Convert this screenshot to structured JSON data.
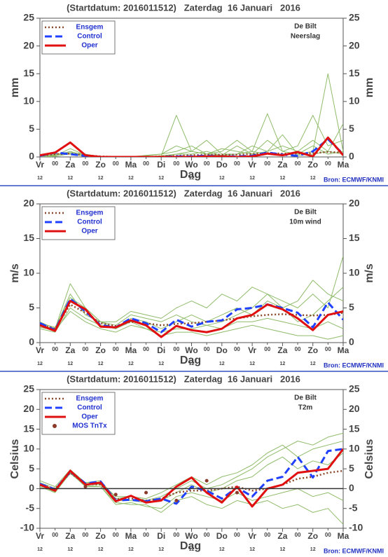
{
  "chart_data": [
    {
      "type": "line",
      "title": "(Startdatum: 2016011512)   Zaterdag  16 Januari   2016",
      "location": "De Bilt",
      "variable": "Neerslag",
      "ylabel": "mm",
      "y2label": "mm",
      "xlabel": "Dag",
      "source": "Bron: ECMWF/KNMI",
      "legend": "upper left",
      "x": [
        0,
        12,
        24,
        36,
        48,
        60,
        72,
        84,
        96,
        108,
        120,
        132,
        144,
        156,
        168,
        180,
        192,
        204,
        216,
        228,
        240
      ],
      "xlim": [
        0,
        240
      ],
      "xticks": [
        {
          "value": 0,
          "label": "Vr"
        },
        {
          "value": 12,
          "label": "00"
        },
        {
          "value": 24,
          "label": "Za"
        },
        {
          "value": 36,
          "label": "00"
        },
        {
          "value": 48,
          "label": "Zo"
        },
        {
          "value": 60,
          "label": "00"
        },
        {
          "value": 72,
          "label": "Ma"
        },
        {
          "value": 84,
          "label": "00"
        },
        {
          "value": 96,
          "label": "Di"
        },
        {
          "value": 108,
          "label": "00"
        },
        {
          "value": 120,
          "label": "Wo"
        },
        {
          "value": 132,
          "label": "00"
        },
        {
          "value": 144,
          "label": "Do"
        },
        {
          "value": 156,
          "label": "00"
        },
        {
          "value": 168,
          "label": "Vr"
        },
        {
          "value": 180,
          "label": "00"
        },
        {
          "value": 192,
          "label": "Za"
        },
        {
          "value": 204,
          "label": "00"
        },
        {
          "value": 216,
          "label": "Zo"
        },
        {
          "value": 228,
          "label": "00"
        },
        {
          "value": 240,
          "label": "Ma"
        }
      ],
      "xsubticks": [
        {
          "value": 0,
          "label": "12"
        },
        {
          "value": 24,
          "label": "12"
        },
        {
          "value": 48,
          "label": "12"
        },
        {
          "value": 72,
          "label": "12"
        },
        {
          "value": 96,
          "label": "12"
        },
        {
          "value": 120,
          "label": "12"
        },
        {
          "value": 144,
          "label": "12"
        },
        {
          "value": 168,
          "label": "12"
        },
        {
          "value": 192,
          "label": "12"
        },
        {
          "value": 216,
          "label": "12"
        }
      ],
      "ylim": [
        0,
        25
      ],
      "yticks": [
        0,
        5,
        10,
        15,
        20,
        25
      ],
      "y2lim": [
        0,
        25
      ],
      "y2ticks": [
        0,
        5,
        10,
        15,
        20,
        25
      ],
      "members": {
        "color": "#8fbc6a",
        "values": [
          [
            0,
            0.3,
            1,
            0.2,
            0,
            0,
            0,
            0,
            0.2,
            7.5,
            1,
            0.5,
            0.3,
            0.5,
            1,
            0.5,
            0.5,
            0.3,
            0.5,
            1,
            0.5
          ],
          [
            0,
            0.5,
            0.8,
            0.5,
            0,
            0,
            0,
            0.3,
            0.5,
            1,
            2,
            0.5,
            1,
            3,
            1,
            7.8,
            1,
            0.5,
            2,
            0.5,
            1
          ],
          [
            0,
            0.2,
            1.5,
            0.3,
            0,
            0,
            0,
            0,
            0,
            0.5,
            1,
            3,
            0.5,
            0.5,
            2,
            1,
            4,
            0.5,
            1,
            15,
            1
          ],
          [
            0,
            0.4,
            0.5,
            0.2,
            0,
            0,
            0.1,
            0.2,
            0.5,
            2,
            1,
            0.5,
            1.5,
            1,
            0.5,
            3,
            1,
            2,
            7.5,
            2,
            3
          ],
          [
            0,
            0.1,
            0.6,
            0.1,
            0,
            0,
            0,
            0,
            0.2,
            0.5,
            0.5,
            1,
            0.3,
            2,
            0.5,
            1,
            2,
            1,
            3,
            1,
            6
          ]
        ]
      },
      "series": [
        {
          "name": "Ensgem",
          "color": "#8b4a2b",
          "style": "dotted",
          "values": [
            0.2,
            0.5,
            0.6,
            0.3,
            0.1,
            0,
            0,
            0,
            0.1,
            0.2,
            0.3,
            0.4,
            0.4,
            0.4,
            0.5,
            0.7,
            0.6,
            0.6,
            0.7,
            0.9,
            0.8
          ]
        },
        {
          "name": "Control",
          "color": "#2040ff",
          "style": "dashed",
          "values": [
            0.2,
            0.8,
            0.5,
            0.2,
            0,
            0,
            0,
            0,
            0,
            0.1,
            0.1,
            0.2,
            0.1,
            0.1,
            0.2,
            0.8,
            0.4,
            0.2,
            1.0,
            3.2,
            0.5
          ]
        },
        {
          "name": "Oper",
          "color": "#e01010",
          "style": "solid",
          "values": [
            0.3,
            0.8,
            2.6,
            0.3,
            0,
            0,
            0,
            0,
            0,
            0,
            0,
            0.1,
            0.1,
            0,
            0.1,
            0.6,
            0.3,
            0.9,
            0.1,
            3.5,
            0.3
          ]
        }
      ]
    },
    {
      "type": "line",
      "title": "(Startdatum: 2016011512)   Zaterdag  16 Januari   2016",
      "location": "De Bilt",
      "variable": "10m wind",
      "ylabel": "m/s",
      "y2label": "m/s",
      "xlabel": "Dag",
      "source": "Bron: ECMWF/KNMI",
      "legend": "upper left",
      "x": [
        0,
        12,
        24,
        36,
        48,
        60,
        72,
        84,
        96,
        108,
        120,
        132,
        144,
        156,
        168,
        180,
        192,
        204,
        216,
        228,
        240
      ],
      "xlim": [
        0,
        240
      ],
      "xticks": [
        {
          "value": 0,
          "label": "Vr"
        },
        {
          "value": 12,
          "label": "00"
        },
        {
          "value": 24,
          "label": "Za"
        },
        {
          "value": 36,
          "label": "00"
        },
        {
          "value": 48,
          "label": "Zo"
        },
        {
          "value": 60,
          "label": "00"
        },
        {
          "value": 72,
          "label": "Ma"
        },
        {
          "value": 84,
          "label": "00"
        },
        {
          "value": 96,
          "label": "Di"
        },
        {
          "value": 108,
          "label": "00"
        },
        {
          "value": 120,
          "label": "Wo"
        },
        {
          "value": 132,
          "label": "00"
        },
        {
          "value": 144,
          "label": "Do"
        },
        {
          "value": 156,
          "label": "00"
        },
        {
          "value": 168,
          "label": "Vr"
        },
        {
          "value": 180,
          "label": "00"
        },
        {
          "value": 192,
          "label": "Za"
        },
        {
          "value": 204,
          "label": "00"
        },
        {
          "value": 216,
          "label": "Zo"
        },
        {
          "value": 228,
          "label": "00"
        },
        {
          "value": 240,
          "label": "Ma"
        }
      ],
      "xsubticks": [
        {
          "value": 0,
          "label": "12"
        },
        {
          "value": 24,
          "label": "12"
        },
        {
          "value": 48,
          "label": "12"
        },
        {
          "value": 72,
          "label": "12"
        },
        {
          "value": 96,
          "label": "12"
        },
        {
          "value": 120,
          "label": "12"
        },
        {
          "value": 144,
          "label": "12"
        },
        {
          "value": 168,
          "label": "12"
        },
        {
          "value": 192,
          "label": "12"
        },
        {
          "value": 216,
          "label": "12"
        }
      ],
      "ylim": [
        0,
        20
      ],
      "yticks": [
        0,
        5,
        10,
        15,
        20
      ],
      "y2lim": [
        0,
        20
      ],
      "y2ticks": [
        0,
        5,
        10,
        15,
        20
      ],
      "members": {
        "color": "#8fbc6a",
        "values": [
          [
            2.5,
            2,
            7,
            4,
            3,
            2,
            3.5,
            3,
            2,
            3,
            4,
            3,
            4,
            5,
            4,
            6,
            5,
            3,
            4,
            6,
            8
          ],
          [
            3,
            2,
            8.5,
            5,
            3,
            2.5,
            4,
            3.5,
            3,
            4,
            3,
            2.5,
            3,
            4,
            5,
            7,
            6,
            5,
            7,
            5,
            12.5
          ],
          [
            2,
            1.5,
            5,
            3.5,
            2.5,
            2,
            3,
            2,
            1.5,
            2,
            2,
            2.5,
            2,
            3,
            3,
            3.5,
            3,
            2.5,
            2,
            3,
            2
          ],
          [
            2.8,
            2.2,
            6.5,
            5,
            3,
            3,
            4.5,
            4,
            3.5,
            5,
            6,
            5,
            7,
            6,
            8,
            7,
            5,
            6,
            9,
            7,
            6
          ],
          [
            2.2,
            1.8,
            4.5,
            3,
            2,
            1.5,
            2.5,
            2,
            1,
            1.5,
            1.5,
            1,
            1.5,
            2,
            2.5,
            2,
            1.5,
            1,
            1,
            0.5,
            1
          ]
        ]
      },
      "series": [
        {
          "name": "Ensgem",
          "color": "#8b4a2b",
          "style": "dotted",
          "values": [
            2.6,
            2.0,
            5.5,
            4.3,
            2.8,
            2.4,
            3.0,
            2.8,
            2.5,
            2.7,
            2.8,
            3.0,
            3.2,
            3.5,
            3.8,
            4.0,
            4.1,
            4.0,
            3.9,
            4.0,
            4.3
          ]
        },
        {
          "name": "Control",
          "color": "#2040ff",
          "style": "dashed",
          "values": [
            2.8,
            1.8,
            6.3,
            4.5,
            2.5,
            2.2,
            3.5,
            2.8,
            1.5,
            3.3,
            2.3,
            3.0,
            3.2,
            4.8,
            5.0,
            5.5,
            5.0,
            4.3,
            2.2,
            5.8,
            3.3
          ]
        },
        {
          "name": "Oper",
          "color": "#e01010",
          "style": "solid",
          "values": [
            2.5,
            1.7,
            6.0,
            4.8,
            2.3,
            2.2,
            3.2,
            2.5,
            0.8,
            2.4,
            1.8,
            1.5,
            2.0,
            3.5,
            4.0,
            5.5,
            4.8,
            3.5,
            1.8,
            4.0,
            4.5
          ]
        }
      ]
    },
    {
      "type": "line",
      "title": "(Startdatum: 2016011512)   Zaterdag  16 Januari   2016",
      "location": "De Bilt",
      "variable": "T2m",
      "ylabel": "Celsius",
      "y2label": "Celsius",
      "xlabel": "Dag",
      "source": "Bron: ECMWF/KNMI",
      "legend": "upper left",
      "zero_line": true,
      "x": [
        0,
        12,
        24,
        36,
        48,
        60,
        72,
        84,
        96,
        108,
        120,
        132,
        144,
        156,
        168,
        180,
        192,
        204,
        216,
        228,
        240
      ],
      "xlim": [
        0,
        240
      ],
      "xticks": [
        {
          "value": 0,
          "label": "Vr"
        },
        {
          "value": 12,
          "label": "00"
        },
        {
          "value": 24,
          "label": "Za"
        },
        {
          "value": 36,
          "label": "00"
        },
        {
          "value": 48,
          "label": "Zo"
        },
        {
          "value": 60,
          "label": "00"
        },
        {
          "value": 72,
          "label": "Ma"
        },
        {
          "value": 84,
          "label": "00"
        },
        {
          "value": 96,
          "label": "Di"
        },
        {
          "value": 108,
          "label": "00"
        },
        {
          "value": 120,
          "label": "Wo"
        },
        {
          "value": 132,
          "label": "00"
        },
        {
          "value": 144,
          "label": "Do"
        },
        {
          "value": 156,
          "label": "00"
        },
        {
          "value": 168,
          "label": "Vr"
        },
        {
          "value": 180,
          "label": "00"
        },
        {
          "value": 192,
          "label": "Za"
        },
        {
          "value": 204,
          "label": "00"
        },
        {
          "value": 216,
          "label": "Zo"
        },
        {
          "value": 228,
          "label": "00"
        },
        {
          "value": 240,
          "label": "Ma"
        }
      ],
      "xsubticks": [
        {
          "value": 0,
          "label": "12"
        },
        {
          "value": 24,
          "label": "12"
        },
        {
          "value": 48,
          "label": "12"
        },
        {
          "value": 72,
          "label": "12"
        },
        {
          "value": 96,
          "label": "12"
        },
        {
          "value": 120,
          "label": "12"
        },
        {
          "value": 144,
          "label": "12"
        },
        {
          "value": 168,
          "label": "12"
        },
        {
          "value": 192,
          "label": "12"
        },
        {
          "value": 216,
          "label": "12"
        }
      ],
      "ylim": [
        -10,
        25
      ],
      "yticks": [
        -10,
        -5,
        0,
        5,
        10,
        15,
        20,
        25
      ],
      "y2lim": [
        -10,
        25
      ],
      "y2ticks": [
        -10,
        -5,
        0,
        5,
        10,
        15,
        20,
        25
      ],
      "members": {
        "color": "#8fbc6a",
        "values": [
          [
            1.5,
            0,
            4.5,
            1.5,
            1.5,
            -2,
            -2,
            -3,
            -2,
            0,
            2,
            0,
            1,
            3,
            5,
            8,
            10,
            12,
            11,
            13,
            14
          ],
          [
            0.5,
            -1,
            4,
            0.5,
            0.5,
            -4,
            -3.5,
            -4.5,
            -5,
            -2,
            -1,
            -2,
            -3,
            -1,
            -3,
            -2,
            -1,
            0,
            -2,
            -1,
            -3
          ],
          [
            1,
            -0.5,
            4.2,
            1,
            1,
            -3,
            -3,
            -3.5,
            -3,
            -1,
            1,
            -1,
            0,
            2,
            3,
            6,
            8,
            5,
            7,
            6,
            9
          ],
          [
            2,
            0.5,
            4.8,
            1.5,
            2,
            -2.5,
            -2,
            -2.5,
            -1,
            1,
            3,
            1,
            3,
            4,
            6,
            9,
            11,
            8,
            10,
            11,
            12
          ],
          [
            0.8,
            -0.8,
            3.8,
            0.8,
            0.5,
            -3.5,
            -4,
            -4,
            -6,
            -3,
            -2,
            -4,
            -5,
            -3,
            -4,
            -3,
            -5,
            -4,
            -6,
            -5,
            -9
          ]
        ]
      },
      "series": [
        {
          "name": "Ensgem",
          "color": "#8b4a2b",
          "style": "dotted",
          "values": [
            1,
            0,
            4,
            1.2,
            1,
            -2.7,
            -2.5,
            -3,
            -2.5,
            -1,
            -0.5,
            -0.5,
            0,
            0.5,
            -0.5,
            0,
            1,
            2.5,
            3,
            4,
            4.5
          ]
        },
        {
          "name": "Control",
          "color": "#2040ff",
          "style": "dashed",
          "values": [
            1.2,
            -0.2,
            4.3,
            1.3,
            1.8,
            -3,
            -2.8,
            -3.2,
            -2.5,
            -3.8,
            0.5,
            -0.5,
            -2.5,
            0.3,
            -2,
            2,
            3,
            8,
            2.8,
            9.5,
            10
          ]
        },
        {
          "name": "Oper",
          "color": "#e01010",
          "style": "solid",
          "values": [
            1,
            -0.5,
            4.5,
            1.0,
            1.5,
            -3.2,
            -1.8,
            -3.5,
            -3.0,
            0.5,
            2.8,
            -1,
            -3.5,
            0.5,
            -4.5,
            0,
            1,
            4,
            4.5,
            5,
            10
          ]
        },
        {
          "name": "MOS TnTx",
          "color": "#8b3a2a",
          "style": "dots",
          "x": [
            36,
            60,
            84,
            108,
            132,
            156
          ],
          "values": [
            0.5,
            -1.5,
            -1,
            -3,
            2,
            -1
          ]
        }
      ]
    }
  ]
}
